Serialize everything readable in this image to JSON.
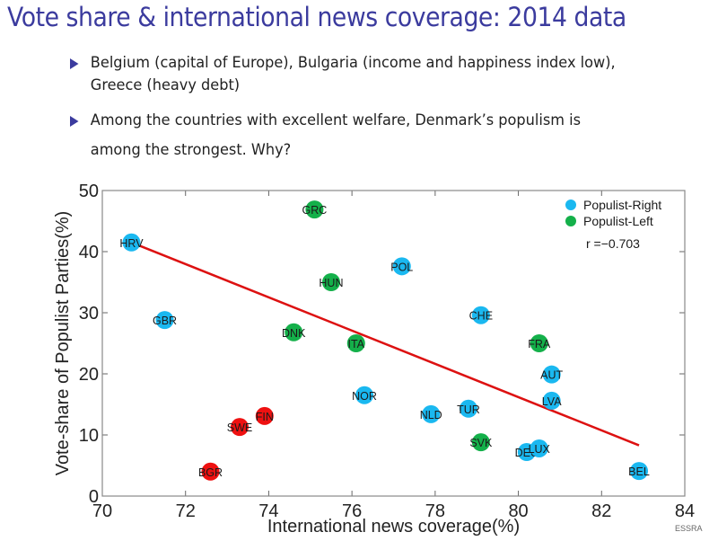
{
  "slide": {
    "title": "Vote share & international news coverage: 2014 data",
    "bullets": [
      {
        "lines": [
          "Belgium (capital of Europe), Bulgaria (income and happiness index low),",
          "Greece (heavy debt)"
        ]
      },
      {
        "lines": [
          "Among the countries with excellent welfare, Denmark’s populism is",
          "among the strongest. Why?"
        ]
      }
    ],
    "watermark": "ESSRA",
    "accent_color": "#3b3b9e"
  },
  "chart_data": {
    "type": "scatter",
    "title": "",
    "xlabel": "International news coverage(%)",
    "ylabel": "Vote-share of Populist Parties(%)",
    "xlim": [
      70,
      84
    ],
    "ylim": [
      0,
      50
    ],
    "xticks": [
      70,
      72,
      74,
      76,
      78,
      80,
      82,
      84
    ],
    "yticks": [
      0,
      10,
      20,
      30,
      40,
      50
    ],
    "grid": false,
    "legend": {
      "placement": "top-right",
      "entries": [
        {
          "label": "Populist-Right",
          "color": "#1ab8f0"
        },
        {
          "label": "Populist-Left",
          "color": "#14b04a"
        }
      ]
    },
    "annotation": "r =−0.703",
    "category_colors": {
      "right": "#1ab8f0",
      "left": "#14b04a",
      "other": "#ee1111"
    },
    "points": [
      {
        "label": "HRV",
        "x": 70.7,
        "y": 41.5,
        "group": "right"
      },
      {
        "label": "GRC",
        "x": 75.1,
        "y": 46.9,
        "group": "left"
      },
      {
        "label": "GBR",
        "x": 71.5,
        "y": 28.8,
        "group": "right"
      },
      {
        "label": "HUN",
        "x": 75.5,
        "y": 35.0,
        "group": "left"
      },
      {
        "label": "POL",
        "x": 77.2,
        "y": 37.6,
        "group": "right"
      },
      {
        "label": "DNK",
        "x": 74.6,
        "y": 26.8,
        "group": "left"
      },
      {
        "label": "ITA",
        "x": 76.1,
        "y": 25.0,
        "group": "left"
      },
      {
        "label": "CHE",
        "x": 79.1,
        "y": 29.6,
        "group": "right"
      },
      {
        "label": "FRA",
        "x": 80.5,
        "y": 25.0,
        "group": "left"
      },
      {
        "label": "AUT",
        "x": 80.8,
        "y": 19.9,
        "group": "right"
      },
      {
        "label": "LVA",
        "x": 80.8,
        "y": 15.6,
        "group": "right"
      },
      {
        "label": "TUR",
        "x": 78.8,
        "y": 14.3,
        "group": "right"
      },
      {
        "label": "NLD",
        "x": 77.9,
        "y": 13.4,
        "group": "right"
      },
      {
        "label": "NOR",
        "x": 76.3,
        "y": 16.5,
        "group": "right"
      },
      {
        "label": "SVK",
        "x": 79.1,
        "y": 8.8,
        "group": "left"
      },
      {
        "label": "DEU",
        "x": 80.2,
        "y": 7.2,
        "group": "right"
      },
      {
        "label": "LUX",
        "x": 80.5,
        "y": 7.8,
        "group": "right"
      },
      {
        "label": "BEL",
        "x": 82.9,
        "y": 4.1,
        "group": "right"
      },
      {
        "label": "FIN",
        "x": 73.9,
        "y": 13.1,
        "group": "other"
      },
      {
        "label": "SWE",
        "x": 73.3,
        "y": 11.3,
        "group": "other"
      },
      {
        "label": "BGR",
        "x": 72.6,
        "y": 4.0,
        "group": "other"
      }
    ],
    "trendline": {
      "x": [
        70.7,
        82.9
      ],
      "y": [
        41.5,
        8.3
      ],
      "color": "#dd1111"
    }
  }
}
